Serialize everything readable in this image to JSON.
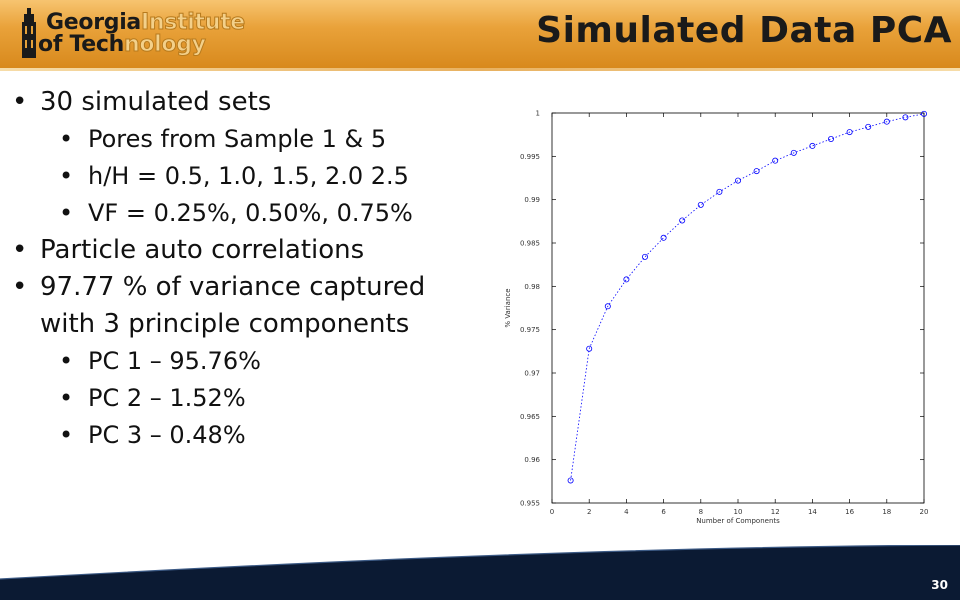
{
  "header": {
    "logo": {
      "line1_dark": "Georgia",
      "line1_light": "Institute",
      "line2_dark": "of Tech",
      "line2_light": "nology"
    },
    "title": "Simulated Data PCA"
  },
  "bullets": [
    {
      "level": 1,
      "text": "30 simulated sets"
    },
    {
      "level": 2,
      "text": "Pores from Sample 1 & 5"
    },
    {
      "level": 2,
      "text": "h/H = 0.5, 1.0, 1.5, 2.0 2.5"
    },
    {
      "level": 2,
      "text": "VF = 0.25%, 0.50%, 0.75%"
    },
    {
      "level": 1,
      "text": "Particle auto correlations"
    },
    {
      "level": 1,
      "text": "97.77 % of variance captured"
    },
    {
      "level": 1,
      "continuation": true,
      "text": "with 3 principle components"
    },
    {
      "level": 2,
      "text": "PC 1 – 95.76%"
    },
    {
      "level": 2,
      "text": "PC 2 – 1.52%"
    },
    {
      "level": 2,
      "text": "PC 3 – 0.48%"
    }
  ],
  "chart_data": {
    "type": "line",
    "xlabel": "Number of Components",
    "ylabel": "% Variance",
    "xlim": [
      0,
      20
    ],
    "ylim": [
      0.955,
      1
    ],
    "xticks": [
      0,
      2,
      4,
      6,
      8,
      10,
      12,
      14,
      16,
      18,
      20
    ],
    "yticks": [
      0.955,
      0.96,
      0.965,
      0.97,
      0.975,
      0.98,
      0.985,
      0.99,
      0.995,
      1
    ],
    "ytick_labels": [
      "0.955",
      "0.96",
      "0.965",
      "0.97",
      "0.975",
      "0.98",
      "0.985",
      "0.99",
      "0.995",
      "1"
    ],
    "grid": false,
    "color": "#0000ff",
    "line_style": "dotted",
    "marker": "circle",
    "x": [
      1,
      2,
      3,
      4,
      5,
      6,
      7,
      8,
      9,
      10,
      11,
      12,
      13,
      14,
      15,
      16,
      17,
      18,
      19,
      20
    ],
    "y": [
      0.9576,
      0.9728,
      0.9777,
      0.9808,
      0.9834,
      0.9856,
      0.9876,
      0.9894,
      0.9909,
      0.9922,
      0.9933,
      0.9945,
      0.9954,
      0.9962,
      0.997,
      0.9978,
      0.9984,
      0.999,
      0.9995,
      0.9999
    ]
  },
  "footer": {
    "page_number": "30"
  },
  "colors": {
    "header_orange": "#e39a2e",
    "footer_navy": "#0b1a33",
    "accent_blue": "#0000ff"
  }
}
